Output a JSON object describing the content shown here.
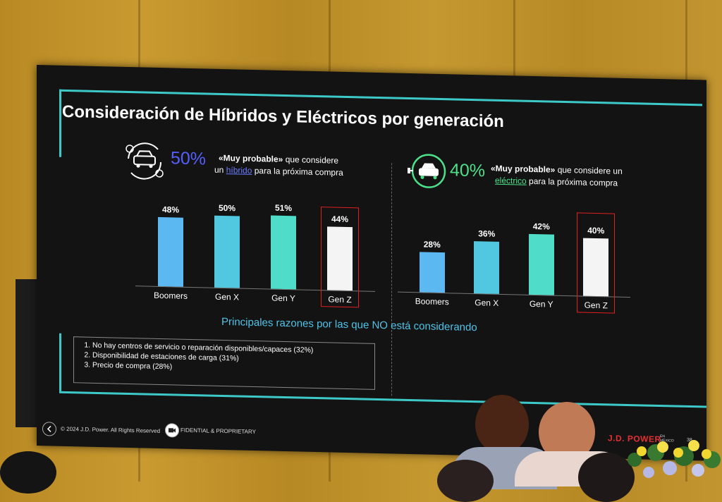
{
  "slide": {
    "title": "Consideración de Híbridos y Eléctricos por generación",
    "left": {
      "pct": "50%",
      "pct_color": "#5560ff",
      "strong": "«Muy probable»",
      "line1_rest": " que considere",
      "line2_pre": "un ",
      "line2_link": "híbrido",
      "line2_post": " para la próxima compra",
      "icon": "hybrid-car-cycle-icon"
    },
    "right": {
      "pct": "40%",
      "pct_color": "#4de08a",
      "strong": "«Muy probable»",
      "line1_rest": " que considere un",
      "line2_link": "eléctrico",
      "line2_post": " para la próxima compra",
      "icon": "electric-car-plug-icon"
    },
    "subtitle": "Principales razones por las que NO está considerando",
    "reasons": [
      "No hay centros de servicio o reparación disponibles/capaces (32%)",
      "Disponibilidad de estaciones de carga (31%)",
      "Precio de compra (28%)"
    ],
    "footer": {
      "copyright": "© 2024 J.D. Power. All Rights Reserved",
      "confidential": "FIDENTIAL & PROPRIETARY",
      "logo": "J.D. POWER",
      "logo_sub": "EN MÉXICO",
      "page": "38"
    }
  },
  "chart_data": [
    {
      "type": "bar",
      "categories": [
        "Boomers",
        "Gen X",
        "Gen Y",
        "Gen Z"
      ],
      "values": [
        48,
        50,
        51,
        44
      ],
      "value_labels": [
        "48%",
        "50%",
        "51%",
        "44%"
      ],
      "colors": [
        "#5bb8f0",
        "#52c8e0",
        "#4fdcc8",
        "#f4f4f4"
      ],
      "highlighted": "Gen Z",
      "highlight_color": "#e02020",
      "ylim": [
        0,
        60
      ]
    },
    {
      "type": "bar",
      "categories": [
        "Boomers",
        "Gen X",
        "Gen Y",
        "Gen Z"
      ],
      "values": [
        28,
        36,
        42,
        40
      ],
      "value_labels": [
        "28%",
        "36%",
        "42%",
        "40%"
      ],
      "colors": [
        "#5bb8f0",
        "#52c8e0",
        "#4fdcc8",
        "#f4f4f4"
      ],
      "highlighted": "Gen Z",
      "highlight_color": "#e02020",
      "ylim": [
        0,
        60
      ]
    }
  ]
}
